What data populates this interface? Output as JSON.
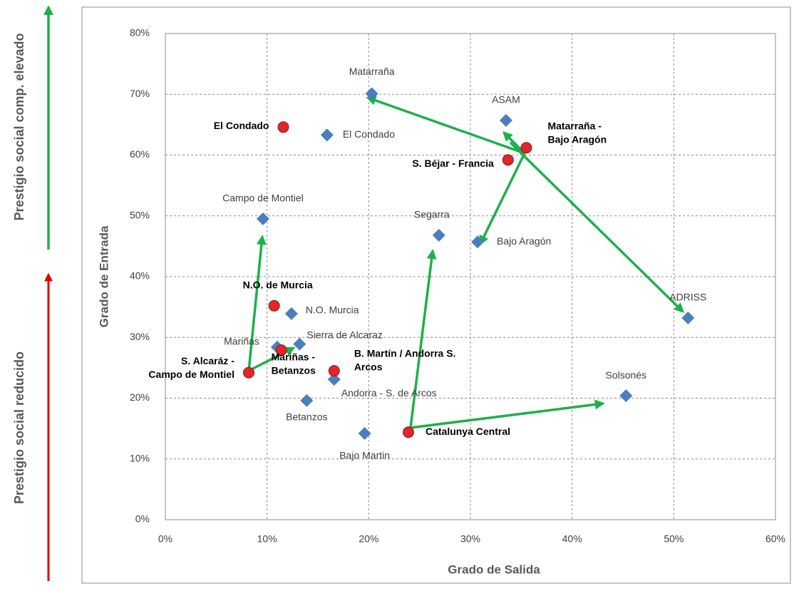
{
  "side_labels": [
    "Prestigio social comp. elevado",
    "Prestigio social reducido"
  ],
  "chart_data": {
    "type": "scatter",
    "x_label": "Grado de Salida",
    "y_label": "Grado de Entrada",
    "xlim": [
      0,
      60
    ],
    "ylim": [
      0,
      80
    ],
    "grid": true,
    "xticks": [
      {
        "value": 0,
        "label": "0%"
      },
      {
        "value": 10,
        "label": "10%"
      },
      {
        "value": 20,
        "label": "20%"
      },
      {
        "value": 30,
        "label": "30%"
      },
      {
        "value": 40,
        "label": "40%"
      },
      {
        "value": 50,
        "label": "50%"
      },
      {
        "value": 60,
        "label": "60%"
      }
    ],
    "yticks": [
      {
        "value": 0,
        "label": "0%"
      },
      {
        "value": 10,
        "label": "10%"
      },
      {
        "value": 20,
        "label": "20%"
      },
      {
        "value": 30,
        "label": "30%"
      },
      {
        "value": 40,
        "label": "40%"
      },
      {
        "value": 50,
        "label": "50%"
      },
      {
        "value": 60,
        "label": "60%"
      },
      {
        "value": 70,
        "label": "70%"
      },
      {
        "value": 80,
        "label": "80%"
      }
    ],
    "series": [
      {
        "marker": "diamond",
        "color": "#4a7ebf",
        "x": [
          20.3,
          33.5,
          15.9,
          9.6,
          26.9,
          30.7,
          51.4,
          12.4,
          11.0,
          13.2,
          16.6,
          13.9,
          45.3,
          19.6
        ],
        "values": [
          70.1,
          65.7,
          63.3,
          49.5,
          46.8,
          45.7,
          33.2,
          33.9,
          28.4,
          28.9,
          23.1,
          19.6,
          20.4,
          14.2
        ],
        "labels": [
          [
            "Matarraña"
          ],
          [
            "ASAM"
          ],
          [
            "El Condado"
          ],
          [
            "Campo de Montiel"
          ],
          [
            "Segarra"
          ],
          [
            "Bajo Aragón"
          ],
          [
            "ADRISS"
          ],
          [
            "N.O. Murcia"
          ],
          [
            "Mariñas"
          ],
          [
            "Sierra de Alcaraz"
          ],
          [
            "Andorra  -  S. de Arcos"
          ],
          [
            "Betanzos"
          ],
          [
            "Solsonés"
          ],
          [
            "Bajo Martin"
          ]
        ]
      },
      {
        "marker": "circle",
        "color": "#e3242b",
        "x": [
          11.6,
          35.5,
          33.7,
          10.7,
          11.4,
          8.2,
          16.6,
          23.9
        ],
        "values": [
          64.6,
          61.2,
          59.2,
          35.2,
          27.9,
          24.2,
          24.5,
          14.4
        ],
        "labels": [
          [
            "El Condado"
          ],
          [
            "Matarraña -",
            "Bajo Aragón"
          ],
          [
            "S. Béjar - Francia"
          ],
          [
            "N.O. de Murcia"
          ],
          [
            "Mariñas -",
            "Betanzos"
          ],
          [
            "S. Alcaráz -",
            "Campo de Montiel"
          ],
          [
            "B. Martín / Andorra S.",
            "Arcos"
          ],
          [
            "Catalunya Central"
          ]
        ]
      }
    ]
  }
}
